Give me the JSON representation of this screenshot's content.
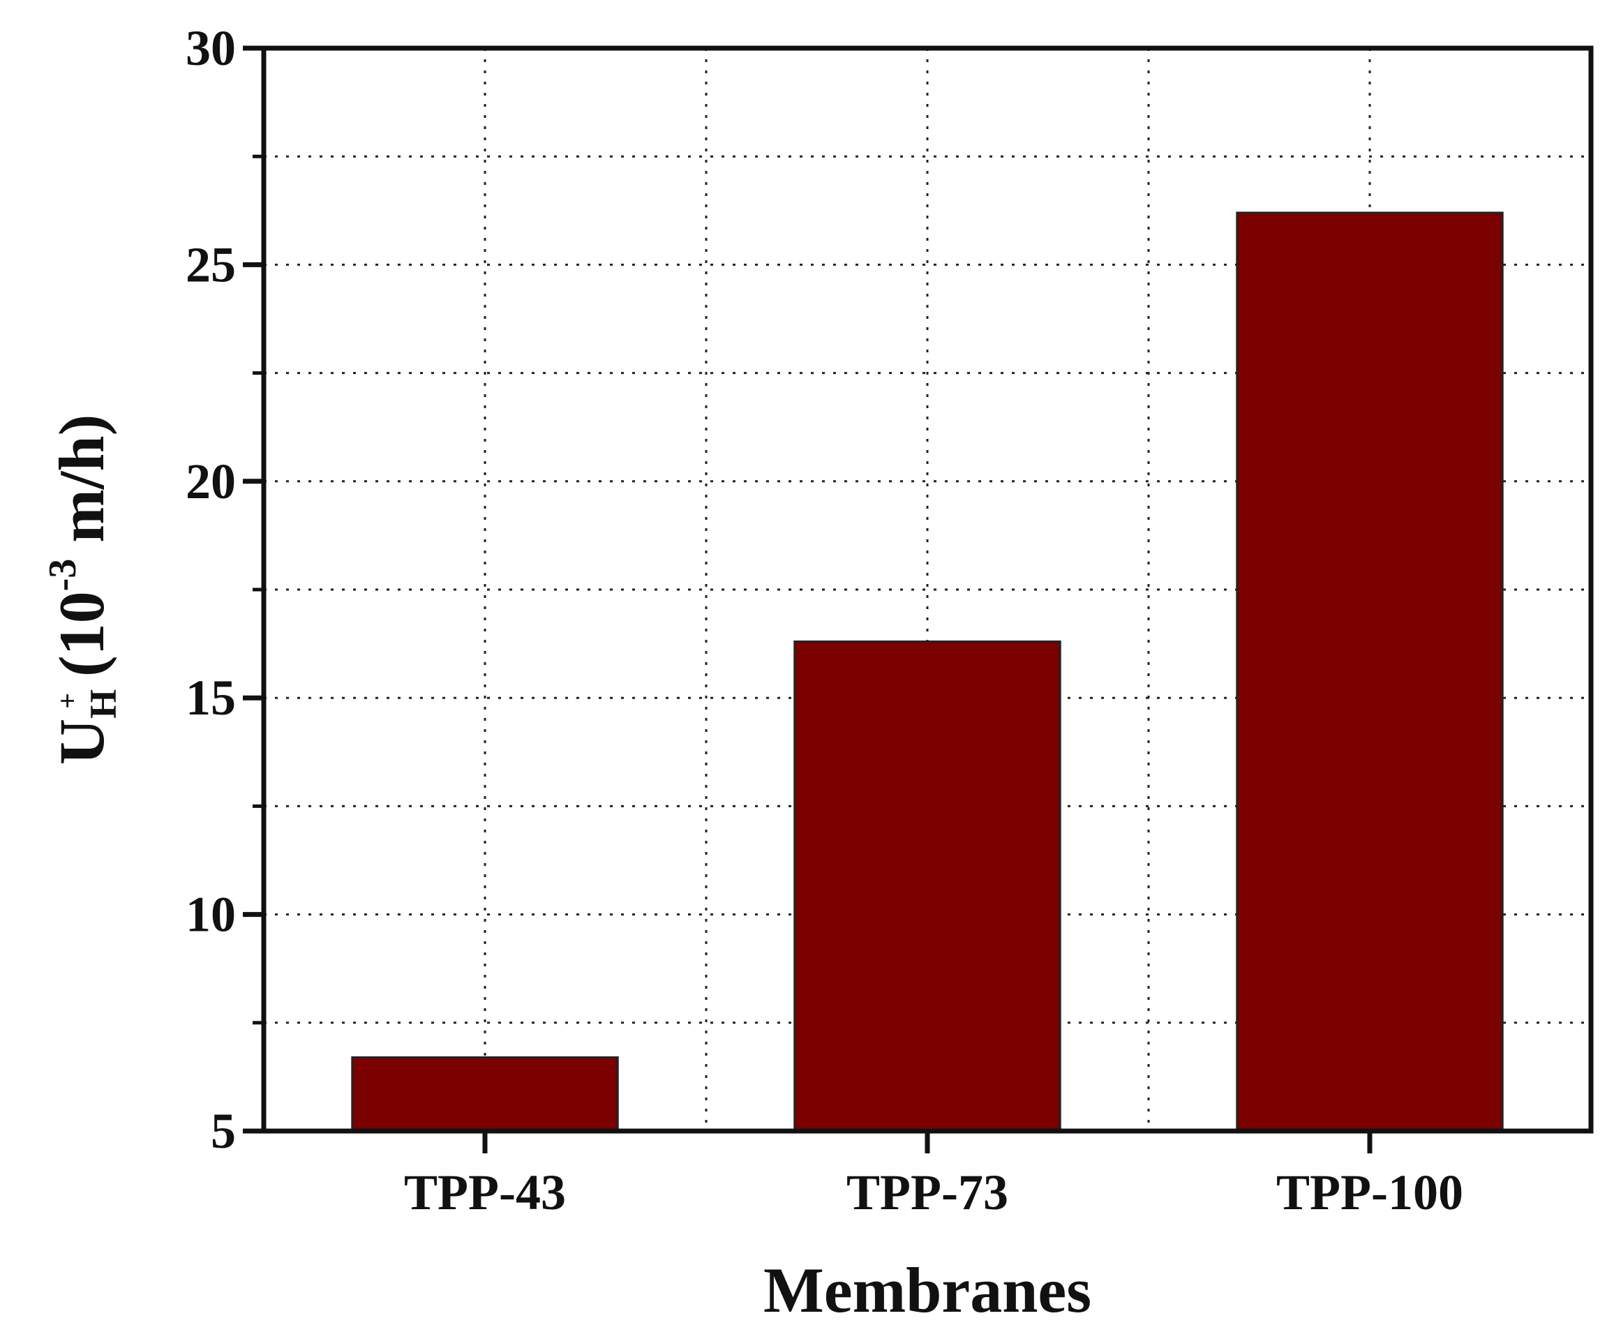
{
  "chart_data": {
    "type": "bar",
    "categories": [
      "TPP-43",
      "TPP-73",
      "TPP-100"
    ],
    "values": [
      6.7,
      16.3,
      26.2
    ],
    "xlabel": "Membranes",
    "ylabel": {
      "base": "U",
      "sub": "H",
      "sup": "+",
      "rest_open": " (10",
      "exp": "-3",
      "rest_close": " m/h)"
    },
    "ylim": [
      5,
      30
    ],
    "yticks": [
      "5",
      "10",
      "15",
      "20",
      "25",
      "30"
    ],
    "bar_color": "#7b0000",
    "grid": true,
    "grid_style": "dotted"
  }
}
